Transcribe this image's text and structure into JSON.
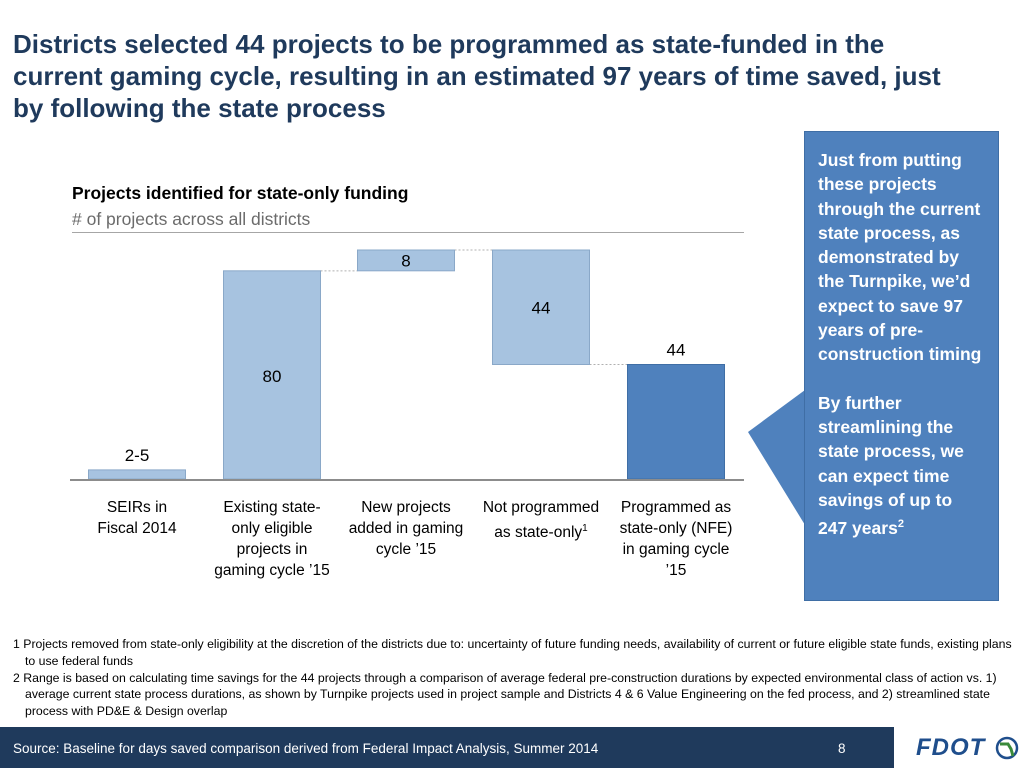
{
  "slide": {
    "title": "Districts selected 44 projects to be programmed as state-funded in the current gaming cycle, resulting in an estimated 97 years of time saved, just by following the state process"
  },
  "callout": {
    "p1": "Just from putting these projects through the current state process, as demonstrated by the Turnpike, we’d expect to save 97 years of pre-construction timing",
    "p2": "By further streamlining the state process, we can expect time savings of up to 247 years",
    "p2_sup": "2"
  },
  "footnotes": [
    "1 Projects removed from state-only eligibility at the discretion of the districts due to: uncertainty of future funding needs, availability of current or future eligible state funds, existing plans to use federal funds",
    "2 Range is based on calculating time savings for the 44 projects through a comparison of average federal pre-construction durations by expected environmental class of action vs. 1) average current state process durations, as shown by Turnpike projects used in project sample and Districts 4 & 6 Value Engineering on the fed process, and 2) streamlined state process with PD&E & Design overlap"
  ],
  "footer": {
    "source": "Source: Baseline for days saved comparison derived from Federal Impact Analysis, Summer 2014",
    "page_number": "8",
    "logo_text": "FDOT"
  },
  "colors": {
    "light_bar": "#a7c3e0",
    "dark_bar": "#4f81bd",
    "title": "#1f3a5c",
    "footer": "#1f3a5c",
    "callout": "#4f81bd"
  },
  "chart_data": {
    "type": "waterfall",
    "title": "Projects identified for state-only funding",
    "subtitle": "# of projects across all districts",
    "categories": [
      "SEIRs in Fiscal 2014",
      "Existing state-only eligible projects in gaming cycle ’15",
      "New projects added in gaming cycle ’15",
      "Not programmed as state-only",
      "Programmed as state-only (NFE) in gaming cycle ’15"
    ],
    "category_superscripts": [
      "",
      "",
      "",
      "1",
      ""
    ],
    "bars": [
      {
        "label": "2-5",
        "start": 0,
        "end": 3.5,
        "style": "light"
      },
      {
        "label": "80",
        "start": 0,
        "end": 80,
        "style": "light"
      },
      {
        "label": "8",
        "start": 80,
        "end": 88,
        "style": "light"
      },
      {
        "label": "44",
        "start": 44,
        "end": 88,
        "style": "light"
      },
      {
        "label": "44",
        "start": 0,
        "end": 44,
        "style": "dark"
      }
    ],
    "ylim": [
      0,
      88
    ]
  }
}
